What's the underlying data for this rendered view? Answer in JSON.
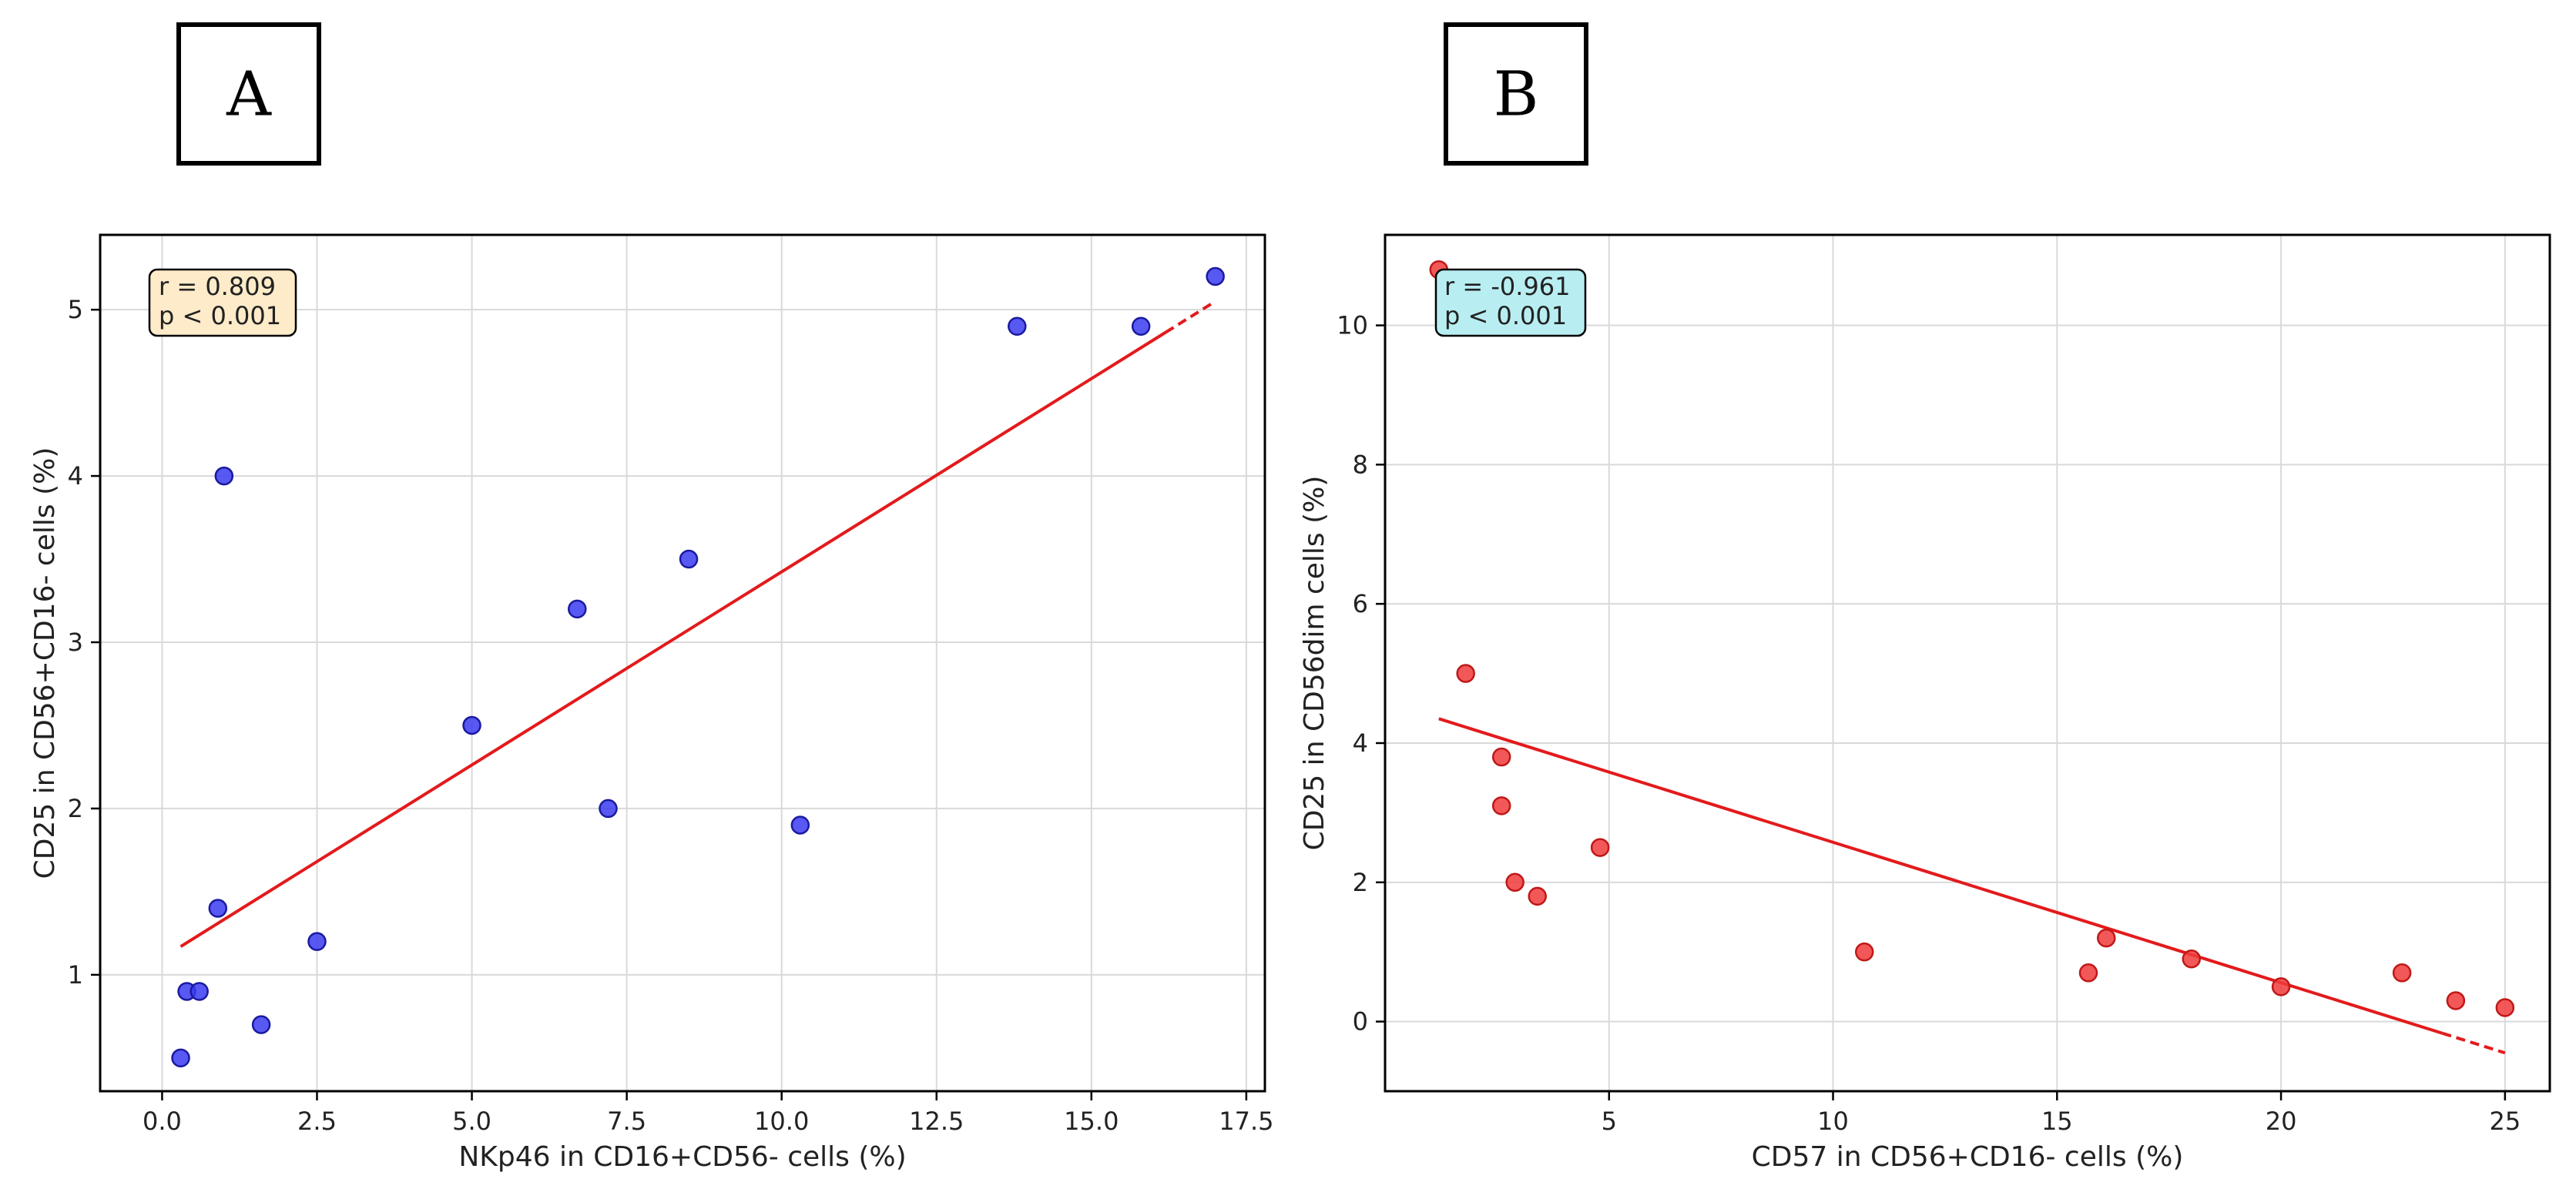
{
  "colors": {
    "frame": "#000000",
    "grid": "#d9d9d9",
    "fit_line": "#e31a1c",
    "series_a_fill": "#3b3bf0",
    "series_a_edge": "#1a1aa0",
    "series_b_fill": "#f03b3b",
    "series_b_edge": "#c01818",
    "annot_a_bg": "#fdebc9",
    "annot_b_bg": "#b8eef2"
  },
  "chart_data": [
    {
      "panel_label": "A",
      "type": "scatter",
      "xlabel": "NKp46 in CD16+CD56- cells (%)",
      "ylabel": "CD25 in CD56+CD16- cells (%)",
      "xlim": [
        -1.0,
        17.8
      ],
      "ylim": [
        0.3,
        5.45
      ],
      "xticks": [
        0.0,
        2.5,
        5.0,
        7.5,
        10.0,
        12.5,
        15.0,
        17.5
      ],
      "xtick_labels": [
        "0.0",
        "2.5",
        "5.0",
        "7.5",
        "10.0",
        "12.5",
        "15.0",
        "17.5"
      ],
      "yticks": [
        1,
        2,
        3,
        4,
        5
      ],
      "ytick_labels": [
        "1",
        "2",
        "3",
        "4",
        "5"
      ],
      "grid": true,
      "points": [
        {
          "x": 0.3,
          "y": 0.5
        },
        {
          "x": 0.4,
          "y": 0.9
        },
        {
          "x": 0.6,
          "y": 0.9
        },
        {
          "x": 0.9,
          "y": 1.4
        },
        {
          "x": 1.0,
          "y": 4.0
        },
        {
          "x": 1.6,
          "y": 0.7
        },
        {
          "x": 2.5,
          "y": 1.2
        },
        {
          "x": 5.0,
          "y": 2.5
        },
        {
          "x": 6.7,
          "y": 3.2
        },
        {
          "x": 7.2,
          "y": 2.0
        },
        {
          "x": 8.5,
          "y": 3.5
        },
        {
          "x": 10.3,
          "y": 1.9
        },
        {
          "x": 13.8,
          "y": 4.9
        },
        {
          "x": 15.8,
          "y": 4.9
        },
        {
          "x": 17.0,
          "y": 5.2
        }
      ],
      "fit": {
        "x0": 0.3,
        "y0": 1.17,
        "x1": 17.0,
        "y1": 5.05,
        "dash_from": 16.2
      },
      "annotation": {
        "line1": "r = 0.809",
        "line2": "p < 0.001"
      }
    },
    {
      "panel_label": "B",
      "type": "scatter",
      "xlabel": "CD57 in CD56+CD16- cells (%)",
      "ylabel": "CD25 in CD56dim cells (%)",
      "xlim": [
        0.0,
        26.0
      ],
      "ylim": [
        -1.0,
        11.3
      ],
      "xticks": [
        5,
        10,
        15,
        20,
        25
      ],
      "xtick_labels": [
        "5",
        "10",
        "15",
        "20",
        "25"
      ],
      "yticks": [
        0,
        2,
        4,
        6,
        8,
        10
      ],
      "ytick_labels": [
        "0",
        "2",
        "4",
        "6",
        "8",
        "10"
      ],
      "grid": true,
      "points": [
        {
          "x": 1.2,
          "y": 10.8
        },
        {
          "x": 1.8,
          "y": 5.0
        },
        {
          "x": 2.6,
          "y": 3.8
        },
        {
          "x": 2.6,
          "y": 3.1
        },
        {
          "x": 2.9,
          "y": 2.0
        },
        {
          "x": 3.4,
          "y": 1.8
        },
        {
          "x": 4.8,
          "y": 2.5
        },
        {
          "x": 10.7,
          "y": 1.0
        },
        {
          "x": 15.7,
          "y": 0.7
        },
        {
          "x": 16.1,
          "y": 1.2
        },
        {
          "x": 18.0,
          "y": 0.9
        },
        {
          "x": 20.0,
          "y": 0.5
        },
        {
          "x": 22.7,
          "y": 0.7
        },
        {
          "x": 23.9,
          "y": 0.3
        },
        {
          "x": 25.0,
          "y": 0.2
        }
      ],
      "fit": {
        "x0": 1.2,
        "y0": 4.35,
        "x1": 25.0,
        "y1": -0.45,
        "dash_from": 23.6
      },
      "annotation": {
        "line1": "r = -0.961",
        "line2": "p < 0.001"
      }
    }
  ]
}
